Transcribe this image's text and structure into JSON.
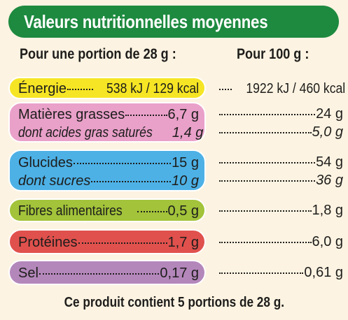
{
  "title": "Valeurs nutritionnelles moyennes",
  "headers": {
    "per_portion": "Pour une portion de 28 g :",
    "per_100g": "Pour 100 g :"
  },
  "rows": {
    "energie": {
      "label": "Énergie",
      "portion": "538 kJ / 129 kcal",
      "per100": "1922 kJ / 460 kcal"
    },
    "matieres_grasses": {
      "label": "Matières grasses",
      "portion": "6,7 g",
      "per100": "24 g"
    },
    "acides_gras_satures": {
      "label": "dont acides gras saturés",
      "portion": "1,4 g",
      "per100": "5,0 g"
    },
    "glucides": {
      "label": "Glucides",
      "portion": "15 g",
      "per100": "54 g"
    },
    "sucres": {
      "label": "dont sucres",
      "portion": "10 g",
      "per100": "36 g"
    },
    "fibres": {
      "label": "Fibres alimentaires",
      "portion": "0,5 g",
      "per100": "1,8 g"
    },
    "proteines": {
      "label": "Protéines",
      "portion": "1,7 g",
      "per100": "6,0 g"
    },
    "sel": {
      "label": "Sel",
      "portion": "0,17 g",
      "per100": "0,61 g"
    }
  },
  "colors": {
    "title_bg": "#1d8a3f",
    "energie": "#f6e524",
    "matieres_grasses": "#e9a0c9",
    "glucides": "#4db1e6",
    "fibres": "#a2c33a",
    "proteines": "#e0514d",
    "sel": "#b487bb"
  },
  "footer": "Ce produit contient 5 portions de 28 g."
}
